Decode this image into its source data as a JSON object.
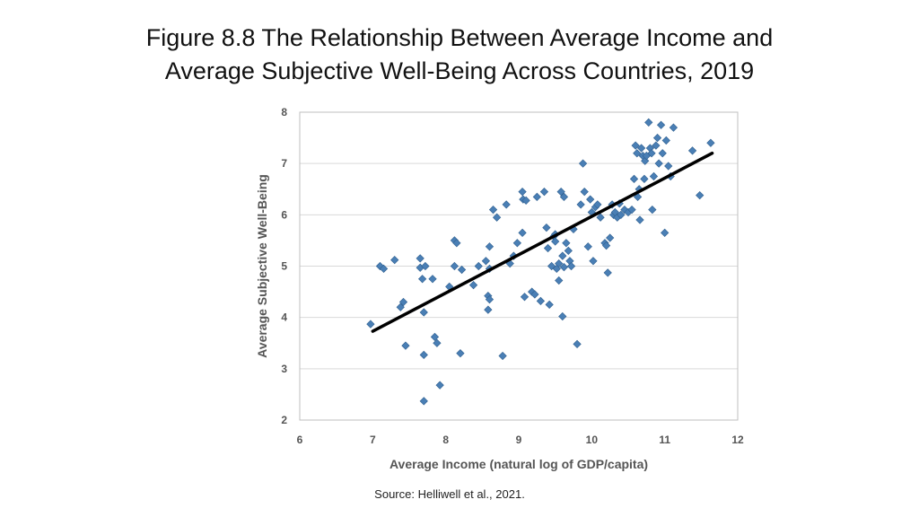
{
  "slide": {
    "title_line1": "Figure 8.8 The Relationship Between Average Income and",
    "title_line2": "Average Subjective Well-Being Across Countries, 2019",
    "source": "Source: Helliwell et al., 2021."
  },
  "colors": {
    "point": "#4a7fb5",
    "point_edge": "#2f5f8f",
    "trendline": "#000000",
    "grid": "#d9d9d9",
    "plot_border": "#bfbfbf"
  },
  "chart_data": {
    "type": "scatter",
    "title": "",
    "xlabel": "Average Income (natural log of GDP/capita)",
    "ylabel": "Average Subjective Well-Being",
    "xlim": [
      6,
      12
    ],
    "ylim": [
      2,
      8
    ],
    "xticks": [
      6,
      7,
      8,
      9,
      10,
      11,
      12
    ],
    "yticks": [
      2,
      3,
      4,
      5,
      6,
      7,
      8
    ],
    "grid": "horizontal",
    "legend": "none",
    "trendline": {
      "x": [
        7.0,
        11.65
      ],
      "y": [
        3.73,
        7.2
      ]
    },
    "points": [
      [
        6.97,
        3.87
      ],
      [
        7.1,
        5.0
      ],
      [
        7.15,
        4.95
      ],
      [
        7.3,
        5.12
      ],
      [
        7.38,
        4.2
      ],
      [
        7.42,
        4.3
      ],
      [
        7.45,
        3.45
      ],
      [
        7.65,
        5.15
      ],
      [
        7.65,
        4.97
      ],
      [
        7.68,
        4.75
      ],
      [
        7.7,
        4.1
      ],
      [
        7.7,
        3.27
      ],
      [
        7.7,
        2.37
      ],
      [
        7.72,
        5.0
      ],
      [
        7.82,
        4.75
      ],
      [
        7.85,
        3.62
      ],
      [
        7.88,
        3.5
      ],
      [
        7.92,
        2.68
      ],
      [
        8.05,
        4.6
      ],
      [
        8.12,
        5.5
      ],
      [
        8.15,
        5.45
      ],
      [
        8.12,
        5.0
      ],
      [
        8.2,
        3.3
      ],
      [
        8.22,
        4.93
      ],
      [
        8.38,
        4.63
      ],
      [
        8.45,
        5.0
      ],
      [
        8.55,
        5.1
      ],
      [
        8.58,
        4.42
      ],
      [
        8.6,
        4.35
      ],
      [
        8.58,
        4.15
      ],
      [
        8.6,
        5.38
      ],
      [
        8.6,
        4.95
      ],
      [
        8.65,
        6.1
      ],
      [
        8.7,
        5.95
      ],
      [
        8.78,
        3.25
      ],
      [
        8.83,
        6.2
      ],
      [
        8.88,
        5.05
      ],
      [
        8.93,
        5.2
      ],
      [
        8.98,
        5.45
      ],
      [
        9.05,
        6.45
      ],
      [
        9.06,
        6.3
      ],
      [
        9.1,
        6.28
      ],
      [
        9.05,
        5.65
      ],
      [
        9.08,
        4.4
      ],
      [
        9.18,
        4.5
      ],
      [
        9.22,
        4.45
      ],
      [
        9.25,
        6.35
      ],
      [
        9.3,
        4.32
      ],
      [
        9.35,
        6.45
      ],
      [
        9.38,
        5.75
      ],
      [
        9.4,
        5.35
      ],
      [
        9.42,
        4.25
      ],
      [
        9.45,
        5.0
      ],
      [
        9.48,
        5.58
      ],
      [
        9.5,
        5.62
      ],
      [
        9.5,
        5.48
      ],
      [
        9.52,
        4.95
      ],
      [
        9.55,
        5.05
      ],
      [
        9.55,
        4.72
      ],
      [
        9.58,
        6.45
      ],
      [
        9.6,
        5.2
      ],
      [
        9.6,
        4.02
      ],
      [
        9.62,
        6.35
      ],
      [
        9.62,
        4.98
      ],
      [
        9.65,
        5.45
      ],
      [
        9.68,
        5.3
      ],
      [
        9.7,
        5.1
      ],
      [
        9.72,
        5.0
      ],
      [
        9.75,
        5.72
      ],
      [
        9.8,
        3.48
      ],
      [
        9.85,
        6.2
      ],
      [
        9.88,
        7.0
      ],
      [
        9.9,
        6.45
      ],
      [
        9.95,
        5.38
      ],
      [
        9.98,
        6.3
      ],
      [
        10.0,
        6.05
      ],
      [
        10.02,
        5.1
      ],
      [
        10.05,
        6.15
      ],
      [
        10.08,
        6.2
      ],
      [
        10.12,
        5.95
      ],
      [
        10.18,
        5.45
      ],
      [
        10.2,
        5.4
      ],
      [
        10.22,
        4.87
      ],
      [
        10.25,
        5.55
      ],
      [
        10.28,
        6.2
      ],
      [
        10.3,
        6.0
      ],
      [
        10.32,
        6.05
      ],
      [
        10.35,
        5.95
      ],
      [
        10.38,
        6.22
      ],
      [
        10.4,
        6.0
      ],
      [
        10.45,
        6.1
      ],
      [
        10.5,
        6.05
      ],
      [
        10.55,
        6.1
      ],
      [
        10.58,
        6.7
      ],
      [
        10.6,
        7.35
      ],
      [
        10.62,
        7.2
      ],
      [
        10.63,
        6.35
      ],
      [
        10.65,
        6.5
      ],
      [
        10.66,
        5.9
      ],
      [
        10.68,
        7.3
      ],
      [
        10.7,
        7.15
      ],
      [
        10.72,
        6.7
      ],
      [
        10.73,
        7.05
      ],
      [
        10.75,
        7.15
      ],
      [
        10.78,
        7.8
      ],
      [
        10.8,
        7.3
      ],
      [
        10.82,
        7.2
      ],
      [
        10.83,
        6.1
      ],
      [
        10.85,
        6.75
      ],
      [
        10.88,
        7.35
      ],
      [
        10.9,
        7.5
      ],
      [
        10.92,
        7.0
      ],
      [
        10.95,
        7.75
      ],
      [
        10.97,
        7.2
      ],
      [
        11.0,
        5.65
      ],
      [
        11.02,
        7.45
      ],
      [
        11.05,
        6.95
      ],
      [
        11.08,
        6.75
      ],
      [
        11.12,
        7.7
      ],
      [
        11.38,
        7.25
      ],
      [
        11.48,
        6.38
      ],
      [
        11.63,
        7.4
      ]
    ]
  }
}
